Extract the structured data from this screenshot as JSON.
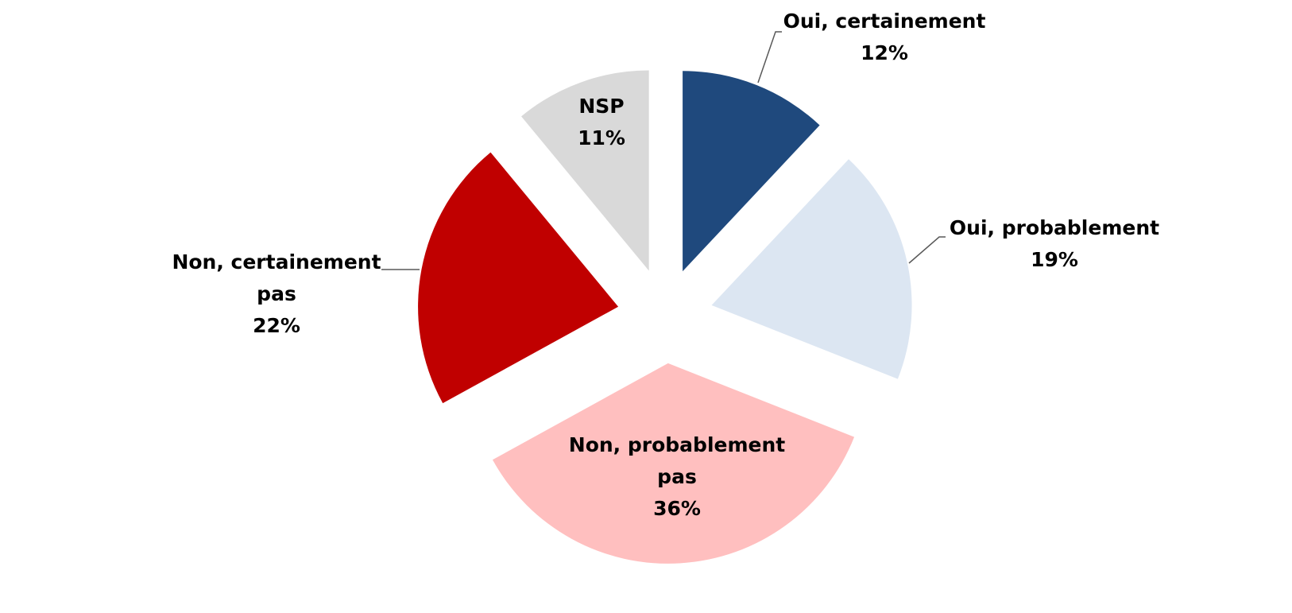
{
  "chart_data": {
    "type": "pie",
    "categories": [
      "Oui, certainement",
      "Oui, probablement",
      "Non, probablement pas",
      "Non, certainement pas",
      "NSP"
    ],
    "values": [
      12,
      19,
      36,
      22,
      11
    ],
    "value_labels": [
      "12%",
      "19%",
      "36%",
      "22%",
      "11%"
    ],
    "colors": [
      "#1f497d",
      "#dce6f2",
      "#ffbfbf",
      "#c00000",
      "#d9d9d9"
    ]
  }
}
